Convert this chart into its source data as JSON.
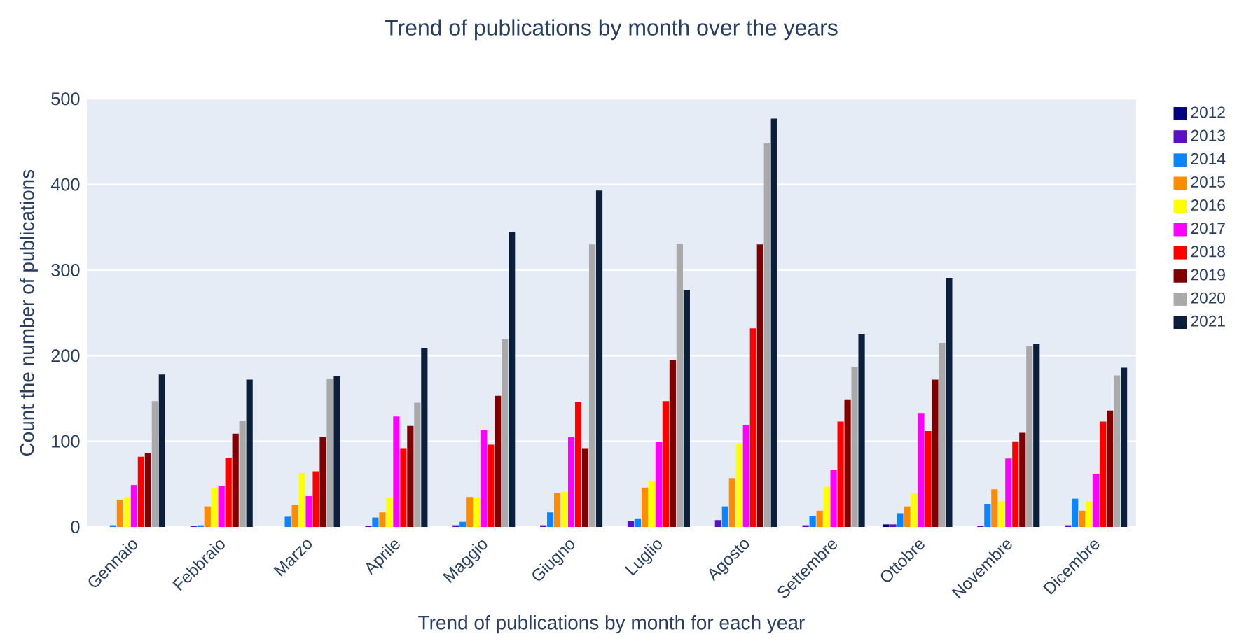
{
  "chart_data": {
    "type": "bar",
    "title": "Trend of publications by month over the years",
    "xlabel": "Trend of publications by month for each year",
    "ylabel": "Count the number of publications",
    "categories": [
      "Gennaio",
      "Febbraio",
      "Marzo",
      "Aprile",
      "Maggio",
      "Giugno",
      "Luglio",
      "Agosto",
      "Settembre",
      "Ottobre",
      "Novembre",
      "Dicembre"
    ],
    "series": [
      {
        "name": "2012",
        "color": "#000080",
        "values": [
          0,
          0,
          0,
          0,
          0,
          0,
          0,
          0,
          0,
          3,
          0,
          0
        ]
      },
      {
        "name": "2013",
        "color": "#5b0fc8",
        "values": [
          0,
          1,
          0,
          1,
          2,
          2,
          7,
          8,
          2,
          3,
          1,
          2
        ]
      },
      {
        "name": "2014",
        "color": "#0a84ff",
        "values": [
          2,
          2,
          12,
          11,
          6,
          17,
          10,
          24,
          13,
          16,
          27,
          33
        ]
      },
      {
        "name": "2015",
        "color": "#ff8c00",
        "values": [
          32,
          24,
          26,
          17,
          35,
          40,
          46,
          57,
          19,
          24,
          44,
          19
        ]
      },
      {
        "name": "2016",
        "color": "#ffff00",
        "values": [
          35,
          45,
          63,
          34,
          34,
          41,
          54,
          97,
          47,
          40,
          30,
          30
        ]
      },
      {
        "name": "2017",
        "color": "#ff00ff",
        "values": [
          49,
          48,
          36,
          129,
          113,
          105,
          99,
          119,
          67,
          133,
          80,
          62
        ]
      },
      {
        "name": "2018",
        "color": "#ff0000",
        "values": [
          82,
          81,
          65,
          92,
          96,
          146,
          147,
          232,
          123,
          112,
          100,
          123
        ]
      },
      {
        "name": "2019",
        "color": "#800000",
        "values": [
          86,
          109,
          105,
          118,
          153,
          92,
          195,
          330,
          149,
          172,
          110,
          136
        ]
      },
      {
        "name": "2020",
        "color": "#a9a9a9",
        "values": [
          147,
          124,
          173,
          145,
          219,
          330,
          331,
          448,
          187,
          215,
          211,
          177
        ]
      },
      {
        "name": "2021",
        "color": "#0b1f3a",
        "values": [
          178,
          172,
          176,
          209,
          345,
          393,
          277,
          477,
          225,
          291,
          214,
          186
        ]
      }
    ],
    "ylim": [
      0,
      500
    ],
    "yticks": [
      0,
      100,
      200,
      300,
      400,
      500
    ],
    "grid": "y",
    "legend": "top right"
  }
}
